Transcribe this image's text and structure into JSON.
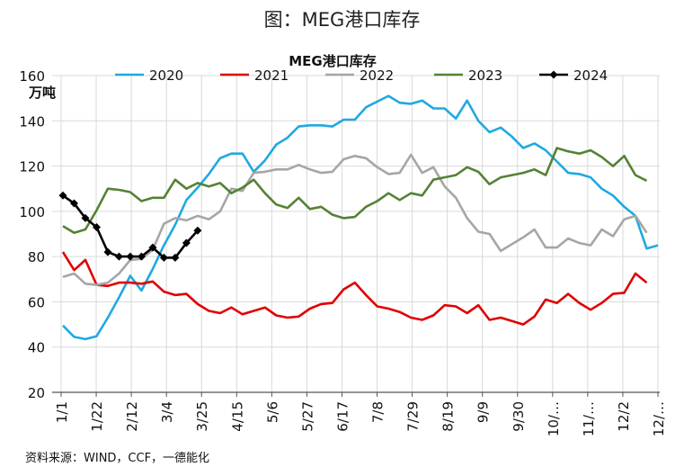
{
  "figure_title": "图：MEG港口库存",
  "source": "资料来源：WIND，CCF，一德能化",
  "chart_data": {
    "type": "line",
    "title": "MEG港口库存",
    "ylabel": "万吨",
    "ylim": [
      20,
      160
    ],
    "yticks": [
      20,
      40,
      60,
      80,
      100,
      120,
      140,
      160
    ],
    "grid": true,
    "legend_position": "top",
    "x_tick_labels": [
      "1/1",
      "1/22",
      "2/12",
      "3/4",
      "3/25",
      "4/15",
      "5/6",
      "5/27",
      "6/17",
      "7/8",
      "7/29",
      "8/19",
      "9/9",
      "9/30",
      "10/…",
      "11/…",
      "12/2",
      "12/…"
    ],
    "series": [
      {
        "name": "2020",
        "color": "#1fa9e1",
        "marker": "none",
        "values": [
          49.5,
          44.5,
          43.5,
          44.8,
          53,
          62,
          71.5,
          65,
          74.5,
          85,
          94,
          105,
          110.5,
          116.5,
          123.5,
          125.5,
          125.5,
          117.5,
          122.5,
          129.5,
          132.5,
          137.5,
          138,
          138,
          137.5,
          140.5,
          140.5,
          146,
          148.5,
          151,
          148,
          147.5,
          149,
          145.5,
          145.5,
          141,
          149,
          140,
          135,
          137,
          133,
          128,
          130,
          127,
          122,
          117,
          116.5,
          115,
          110,
          107,
          102,
          98,
          83.5,
          85
        ]
      },
      {
        "name": "2021",
        "color": "#e00000",
        "marker": "none",
        "values": [
          82,
          74,
          78.5,
          67.5,
          67,
          68.5,
          68.5,
          68,
          69,
          64.5,
          63,
          63.5,
          59,
          56,
          55,
          57.5,
          54.5,
          56,
          57.5,
          54,
          53,
          53.5,
          57,
          59,
          59.5,
          65.5,
          68.5,
          63,
          58,
          57,
          55.5,
          53,
          52,
          54,
          58.5,
          58,
          55,
          58.5,
          52,
          53,
          51.5,
          50,
          53.5,
          61,
          59.5,
          63.5,
          59.5,
          56.5,
          59.5,
          63.5,
          64,
          72.5,
          68.5
        ]
      },
      {
        "name": "2022",
        "color": "#a6a6a6",
        "marker": "none",
        "values": [
          71,
          72.5,
          68,
          67.5,
          68.5,
          72.5,
          78.5,
          79,
          83,
          94.5,
          97,
          96,
          98,
          96.5,
          100,
          110,
          109,
          117,
          117.5,
          118.5,
          118.5,
          120.5,
          118.5,
          117,
          117.5,
          123,
          124.5,
          123.5,
          119.5,
          116.5,
          117,
          125,
          117,
          119.5,
          111,
          106,
          97,
          91,
          90,
          82.5,
          85.5,
          88.5,
          92,
          84,
          84,
          88,
          86,
          85,
          92,
          89,
          96.5,
          98,
          90.5
        ]
      },
      {
        "name": "2023",
        "color": "#548235",
        "marker": "none",
        "values": [
          93.5,
          90.5,
          92,
          100.5,
          110,
          109.5,
          108.5,
          104.5,
          106,
          106,
          114,
          110,
          112.5,
          111,
          112.5,
          108,
          110.5,
          114,
          108,
          103,
          101.5,
          106,
          101,
          102,
          98.5,
          97,
          97.5,
          102,
          104.5,
          108,
          105,
          108,
          107,
          114,
          115,
          116,
          119.5,
          117.5,
          112,
          115,
          116,
          117,
          118.5,
          116,
          128,
          126.5,
          125.5,
          127,
          124,
          120,
          124.5,
          116,
          113.5
        ]
      },
      {
        "name": "2024",
        "color": "#000000",
        "marker": "diamond",
        "values": [
          107,
          103.5,
          97,
          93,
          82,
          80,
          80,
          80,
          84,
          79.5,
          79.5,
          86,
          91.5
        ]
      }
    ]
  }
}
